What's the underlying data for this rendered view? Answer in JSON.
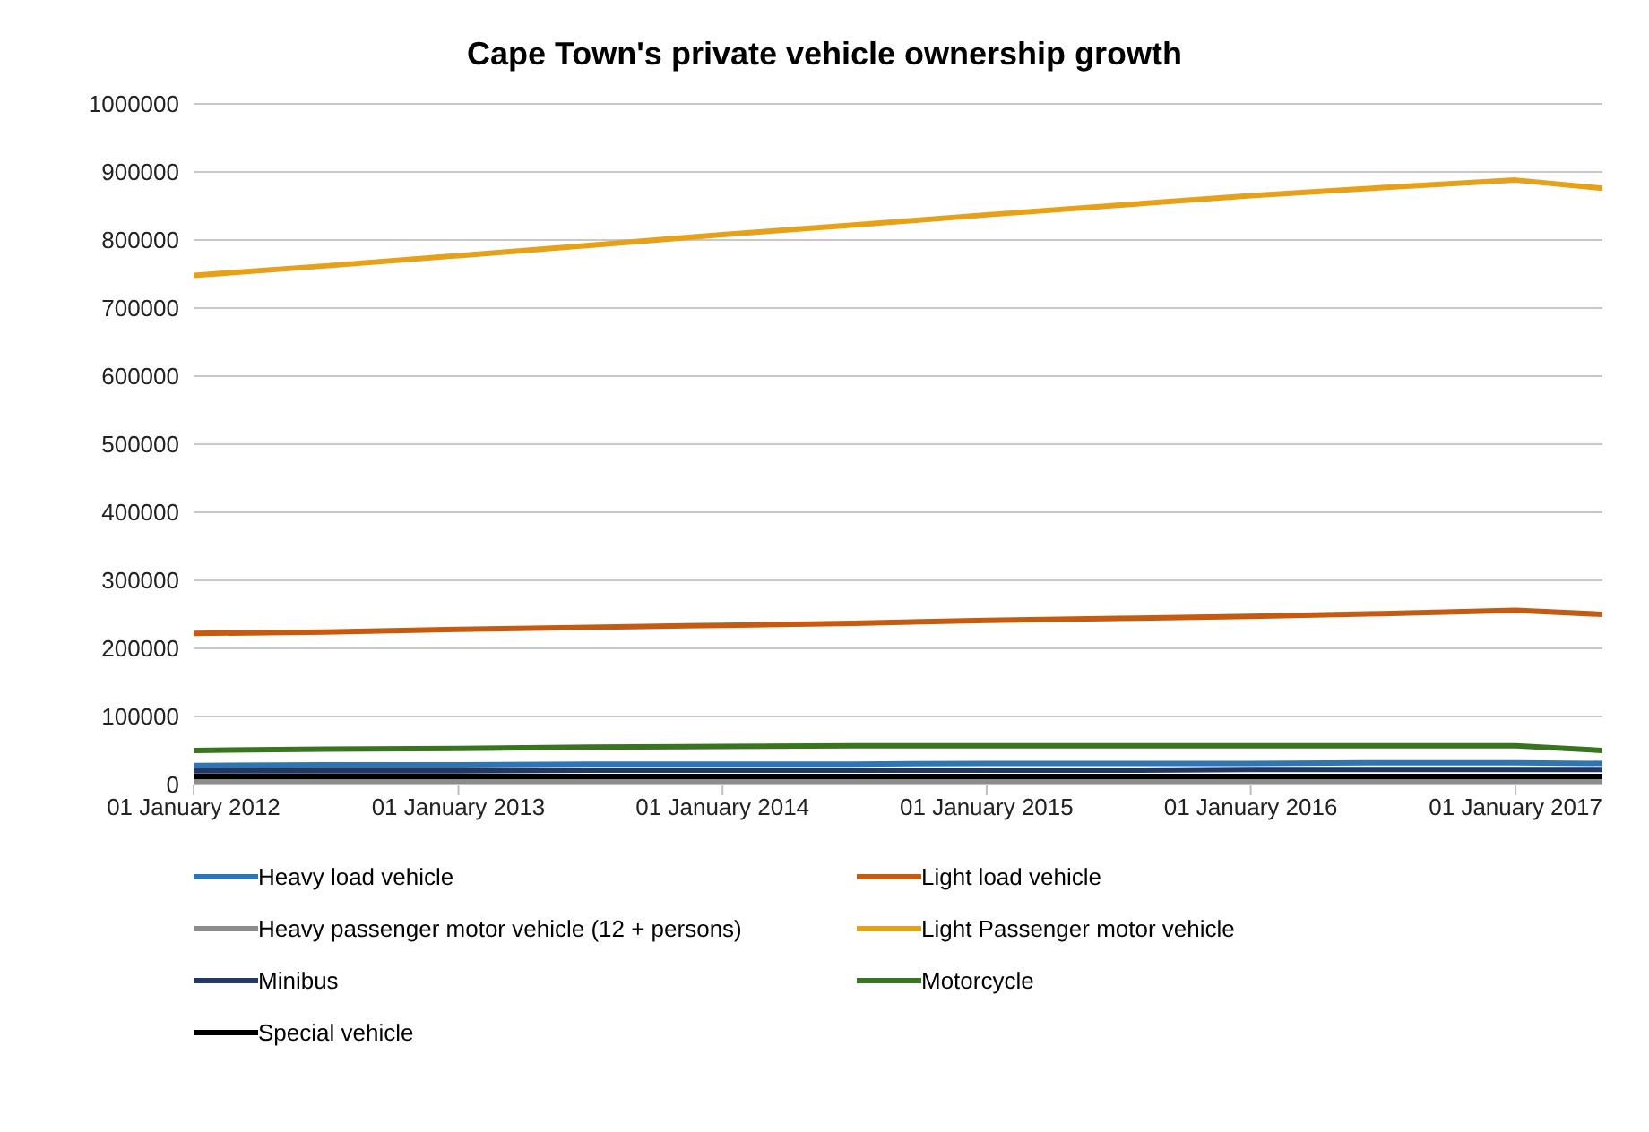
{
  "chart_data": {
    "type": "line",
    "title": "Cape Town's private vehicle ownership growth",
    "x": [
      "2012-01",
      "2012-07",
      "2013-01",
      "2013-07",
      "2014-01",
      "2014-07",
      "2015-01",
      "2015-07",
      "2016-01",
      "2016-07",
      "2017-01",
      "2017-05"
    ],
    "xlim": [
      "2012-01",
      "2017-05"
    ],
    "xticks": [
      {
        "value": "2012-01",
        "label": "01 January 2012"
      },
      {
        "value": "2013-01",
        "label": "01 January 2013"
      },
      {
        "value": "2014-01",
        "label": "01 January 2014"
      },
      {
        "value": "2015-01",
        "label": "01 January 2015"
      },
      {
        "value": "2016-01",
        "label": "01 January 2016"
      },
      {
        "value": "2017-01",
        "label": "01 January 2017"
      }
    ],
    "ylim": [
      0,
      1000000
    ],
    "yticks": [
      0,
      100000,
      200000,
      300000,
      400000,
      500000,
      600000,
      700000,
      800000,
      900000,
      1000000
    ],
    "grid": "y",
    "legend": "bottom",
    "marker": "none",
    "line_style": "solid",
    "series": [
      {
        "name": "Heavy load vehicle",
        "color": "#2e75b6",
        "values": [
          28000,
          29000,
          29000,
          30000,
          30000,
          30000,
          31000,
          31000,
          31000,
          32000,
          32000,
          31000
        ]
      },
      {
        "name": "Light load vehicle",
        "color": "#c55a11",
        "values": [
          222000,
          224000,
          228000,
          231000,
          234000,
          237000,
          241000,
          244000,
          247000,
          251000,
          256000,
          250000
        ]
      },
      {
        "name": "Heavy passenger motor vehicle (12 + persons)",
        "color": "#8c8c8c",
        "values": [
          5000,
          5000,
          5000,
          5000,
          5000,
          5000,
          5000,
          5000,
          5000,
          5000,
          5000,
          5000
        ]
      },
      {
        "name": "Light Passenger motor vehicle",
        "color": "#e6a118",
        "values": [
          748000,
          762000,
          777000,
          792000,
          808000,
          822000,
          837000,
          851000,
          865000,
          877000,
          888000,
          876000
        ]
      },
      {
        "name": "Minibus",
        "color": "#1f3864",
        "values": [
          20000,
          20000,
          20000,
          21000,
          21000,
          21000,
          21000,
          21000,
          22000,
          22000,
          22000,
          22000
        ]
      },
      {
        "name": "Motorcycle",
        "color": "#38761d",
        "values": [
          50000,
          52000,
          53000,
          55000,
          56000,
          57000,
          57000,
          57000,
          57000,
          57000,
          57000,
          50000
        ]
      },
      {
        "name": "Special vehicle",
        "color": "#000000",
        "values": [
          12000,
          12000,
          12000,
          12000,
          12000,
          12000,
          12000,
          12000,
          12000,
          12000,
          12000,
          12000
        ]
      }
    ]
  }
}
